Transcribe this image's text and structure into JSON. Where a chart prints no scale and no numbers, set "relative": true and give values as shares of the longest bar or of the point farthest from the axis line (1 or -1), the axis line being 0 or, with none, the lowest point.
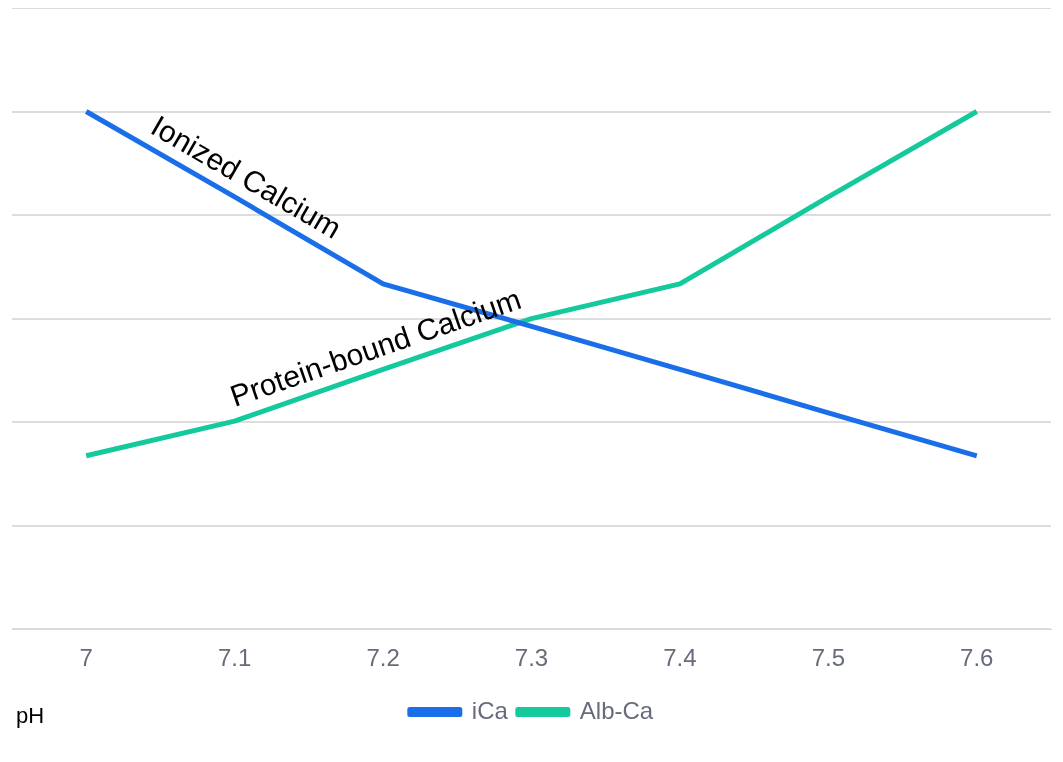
{
  "chart_data": {
    "type": "line",
    "relative": true,
    "xlabel": "pH",
    "categories": [
      "7",
      "7.1",
      "7.2",
      "7.3",
      "7.4",
      "7.5",
      "7.6"
    ],
    "series": [
      {
        "name": "iCa",
        "color": "#1a6fe8",
        "values": [
          1,
          0.835,
          0.667,
          0.585,
          0.502,
          0.418,
          0.335
        ]
      },
      {
        "name": "Alb-Ca",
        "color": "#14c99c",
        "values": [
          0.335,
          0.402,
          0.502,
          0.6,
          0.667,
          0.835,
          1
        ]
      }
    ],
    "annotations": [
      {
        "text": "Ionized Calcium",
        "x": "7.1",
        "y": 0.835
      },
      {
        "text": "Protein-bound Calcium",
        "x": "7.2",
        "y": 0.502
      }
    ],
    "grid": "y",
    "legend": "bottom",
    "marker": "none",
    "line_style": "solid"
  }
}
